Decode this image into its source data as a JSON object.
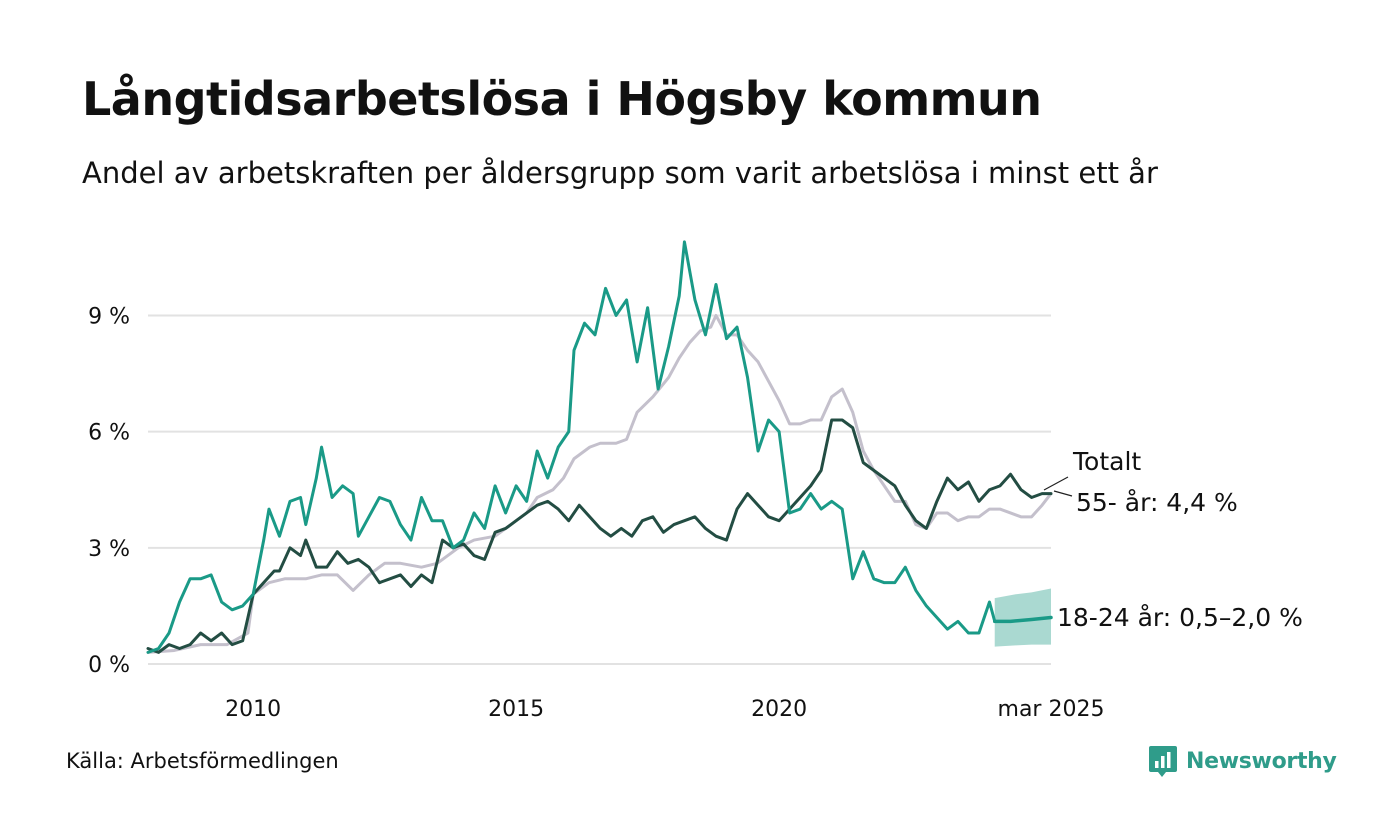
{
  "title": "Långtidsarbetslösa i Högsby kommun",
  "subtitle": "Andel av arbetskraften per åldersgrupp som varit arbetslösa i minst ett år",
  "source": "Källa: Arbetsförmedlingen",
  "logo_text": "Newsworthy",
  "chart_data": {
    "type": "line",
    "y_ticks": [
      {
        "value": 0,
        "label": "0 %"
      },
      {
        "value": 3,
        "label": "3 %"
      },
      {
        "value": 6,
        "label": "6 %"
      },
      {
        "value": 9,
        "label": "9 %"
      }
    ],
    "x_ticks": [
      {
        "value": 2010,
        "label": "2010"
      },
      {
        "value": 2015,
        "label": "2015"
      },
      {
        "value": 2020,
        "label": "2020"
      },
      {
        "value": 2025.17,
        "label": "mar 2025"
      }
    ],
    "xlim": [
      2008.0,
      2025.17
    ],
    "ylim": [
      0,
      11
    ],
    "grid": true,
    "colors": {
      "youth": "#1a9a87",
      "senior": "#234d43",
      "total": "#c4c0cc",
      "band": "#a5d7cf",
      "grid": "#e2e2e2"
    },
    "labels": {
      "total": "Totalt",
      "senior": "55- år: 4,4 %",
      "youth": "18-24 år: 0,5–2,0 %"
    },
    "series": [
      {
        "key": "total",
        "points": [
          [
            2008.0,
            0.3
          ],
          [
            2008.5,
            0.35
          ],
          [
            2009.0,
            0.5
          ],
          [
            2009.5,
            0.5
          ],
          [
            2009.9,
            0.8
          ],
          [
            2010.0,
            1.8
          ],
          [
            2010.3,
            2.1
          ],
          [
            2010.6,
            2.2
          ],
          [
            2011.0,
            2.2
          ],
          [
            2011.3,
            2.3
          ],
          [
            2011.6,
            2.3
          ],
          [
            2011.9,
            1.9
          ],
          [
            2012.2,
            2.3
          ],
          [
            2012.5,
            2.6
          ],
          [
            2012.8,
            2.6
          ],
          [
            2013.2,
            2.5
          ],
          [
            2013.5,
            2.6
          ],
          [
            2013.9,
            3.0
          ],
          [
            2014.2,
            3.2
          ],
          [
            2014.6,
            3.3
          ],
          [
            2014.9,
            3.6
          ],
          [
            2015.2,
            3.9
          ],
          [
            2015.4,
            4.3
          ],
          [
            2015.7,
            4.5
          ],
          [
            2015.9,
            4.8
          ],
          [
            2016.1,
            5.3
          ],
          [
            2016.4,
            5.6
          ],
          [
            2016.6,
            5.7
          ],
          [
            2016.9,
            5.7
          ],
          [
            2017.1,
            5.8
          ],
          [
            2017.3,
            6.5
          ],
          [
            2017.6,
            6.9
          ],
          [
            2017.9,
            7.4
          ],
          [
            2018.1,
            7.9
          ],
          [
            2018.3,
            8.3
          ],
          [
            2018.5,
            8.6
          ],
          [
            2018.7,
            8.7
          ],
          [
            2018.8,
            9.0
          ],
          [
            2019.0,
            8.5
          ],
          [
            2019.2,
            8.5
          ],
          [
            2019.4,
            8.1
          ],
          [
            2019.6,
            7.8
          ],
          [
            2019.8,
            7.3
          ],
          [
            2020.0,
            6.8
          ],
          [
            2020.2,
            6.2
          ],
          [
            2020.4,
            6.2
          ],
          [
            2020.6,
            6.3
          ],
          [
            2020.8,
            6.3
          ],
          [
            2021.0,
            6.9
          ],
          [
            2021.2,
            7.1
          ],
          [
            2021.4,
            6.5
          ],
          [
            2021.6,
            5.5
          ],
          [
            2021.8,
            5.0
          ],
          [
            2022.0,
            4.6
          ],
          [
            2022.2,
            4.2
          ],
          [
            2022.4,
            4.2
          ],
          [
            2022.6,
            3.6
          ],
          [
            2022.8,
            3.5
          ],
          [
            2023.0,
            3.9
          ],
          [
            2023.2,
            3.9
          ],
          [
            2023.4,
            3.7
          ],
          [
            2023.6,
            3.8
          ],
          [
            2023.8,
            3.8
          ],
          [
            2024.0,
            4.0
          ],
          [
            2024.2,
            4.0
          ],
          [
            2024.4,
            3.9
          ],
          [
            2024.6,
            3.8
          ],
          [
            2024.8,
            3.8
          ],
          [
            2025.0,
            4.1
          ],
          [
            2025.17,
            4.4
          ]
        ]
      },
      {
        "key": "senior",
        "points": [
          [
            2008.0,
            0.4
          ],
          [
            2008.2,
            0.3
          ],
          [
            2008.4,
            0.5
          ],
          [
            2008.6,
            0.4
          ],
          [
            2008.8,
            0.5
          ],
          [
            2009.0,
            0.8
          ],
          [
            2009.2,
            0.6
          ],
          [
            2009.4,
            0.8
          ],
          [
            2009.6,
            0.5
          ],
          [
            2009.8,
            0.6
          ],
          [
            2010.0,
            1.8
          ],
          [
            2010.2,
            2.1
          ],
          [
            2010.4,
            2.4
          ],
          [
            2010.5,
            2.4
          ],
          [
            2010.7,
            3.0
          ],
          [
            2010.9,
            2.8
          ],
          [
            2011.0,
            3.2
          ],
          [
            2011.2,
            2.5
          ],
          [
            2011.4,
            2.5
          ],
          [
            2011.6,
            2.9
          ],
          [
            2011.8,
            2.6
          ],
          [
            2012.0,
            2.7
          ],
          [
            2012.2,
            2.5
          ],
          [
            2012.4,
            2.1
          ],
          [
            2012.6,
            2.2
          ],
          [
            2012.8,
            2.3
          ],
          [
            2013.0,
            2.0
          ],
          [
            2013.2,
            2.3
          ],
          [
            2013.4,
            2.1
          ],
          [
            2013.6,
            3.2
          ],
          [
            2013.8,
            3.0
          ],
          [
            2014.0,
            3.1
          ],
          [
            2014.2,
            2.8
          ],
          [
            2014.4,
            2.7
          ],
          [
            2014.6,
            3.4
          ],
          [
            2014.8,
            3.5
          ],
          [
            2015.0,
            3.7
          ],
          [
            2015.2,
            3.9
          ],
          [
            2015.4,
            4.1
          ],
          [
            2015.6,
            4.2
          ],
          [
            2015.8,
            4.0
          ],
          [
            2016.0,
            3.7
          ],
          [
            2016.2,
            4.1
          ],
          [
            2016.4,
            3.8
          ],
          [
            2016.6,
            3.5
          ],
          [
            2016.8,
            3.3
          ],
          [
            2017.0,
            3.5
          ],
          [
            2017.2,
            3.3
          ],
          [
            2017.4,
            3.7
          ],
          [
            2017.6,
            3.8
          ],
          [
            2017.8,
            3.4
          ],
          [
            2018.0,
            3.6
          ],
          [
            2018.2,
            3.7
          ],
          [
            2018.4,
            3.8
          ],
          [
            2018.6,
            3.5
          ],
          [
            2018.8,
            3.3
          ],
          [
            2019.0,
            3.2
          ],
          [
            2019.2,
            4.0
          ],
          [
            2019.4,
            4.4
          ],
          [
            2019.6,
            4.1
          ],
          [
            2019.8,
            3.8
          ],
          [
            2020.0,
            3.7
          ],
          [
            2020.2,
            4.0
          ],
          [
            2020.4,
            4.3
          ],
          [
            2020.6,
            4.6
          ],
          [
            2020.8,
            5.0
          ],
          [
            2021.0,
            6.3
          ],
          [
            2021.2,
            6.3
          ],
          [
            2021.4,
            6.1
          ],
          [
            2021.6,
            5.2
          ],
          [
            2021.8,
            5.0
          ],
          [
            2022.0,
            4.8
          ],
          [
            2022.2,
            4.6
          ],
          [
            2022.4,
            4.1
          ],
          [
            2022.6,
            3.7
          ],
          [
            2022.8,
            3.5
          ],
          [
            2023.0,
            4.2
          ],
          [
            2023.2,
            4.8
          ],
          [
            2023.4,
            4.5
          ],
          [
            2023.6,
            4.7
          ],
          [
            2023.8,
            4.2
          ],
          [
            2024.0,
            4.5
          ],
          [
            2024.2,
            4.6
          ],
          [
            2024.4,
            4.9
          ],
          [
            2024.6,
            4.5
          ],
          [
            2024.8,
            4.3
          ],
          [
            2025.0,
            4.4
          ],
          [
            2025.17,
            4.4
          ]
        ]
      },
      {
        "key": "youth",
        "points": [
          [
            2008.0,
            0.3
          ],
          [
            2008.2,
            0.4
          ],
          [
            2008.4,
            0.8
          ],
          [
            2008.6,
            1.6
          ],
          [
            2008.8,
            2.2
          ],
          [
            2009.0,
            2.2
          ],
          [
            2009.2,
            2.3
          ],
          [
            2009.4,
            1.6
          ],
          [
            2009.6,
            1.4
          ],
          [
            2009.8,
            1.5
          ],
          [
            2010.0,
            1.8
          ],
          [
            2010.2,
            3.2
          ],
          [
            2010.3,
            4.0
          ],
          [
            2010.5,
            3.3
          ],
          [
            2010.7,
            4.2
          ],
          [
            2010.9,
            4.3
          ],
          [
            2011.0,
            3.6
          ],
          [
            2011.2,
            4.8
          ],
          [
            2011.3,
            5.6
          ],
          [
            2011.5,
            4.3
          ],
          [
            2011.7,
            4.6
          ],
          [
            2011.9,
            4.4
          ],
          [
            2012.0,
            3.3
          ],
          [
            2012.2,
            3.8
          ],
          [
            2012.4,
            4.3
          ],
          [
            2012.6,
            4.2
          ],
          [
            2012.8,
            3.6
          ],
          [
            2013.0,
            3.2
          ],
          [
            2013.2,
            4.3
          ],
          [
            2013.4,
            3.7
          ],
          [
            2013.6,
            3.7
          ],
          [
            2013.8,
            3.0
          ],
          [
            2014.0,
            3.2
          ],
          [
            2014.2,
            3.9
          ],
          [
            2014.4,
            3.5
          ],
          [
            2014.6,
            4.6
          ],
          [
            2014.8,
            3.9
          ],
          [
            2015.0,
            4.6
          ],
          [
            2015.2,
            4.2
          ],
          [
            2015.4,
            5.5
          ],
          [
            2015.6,
            4.8
          ],
          [
            2015.8,
            5.6
          ],
          [
            2016.0,
            6.0
          ],
          [
            2016.1,
            8.1
          ],
          [
            2016.3,
            8.8
          ],
          [
            2016.5,
            8.5
          ],
          [
            2016.7,
            9.7
          ],
          [
            2016.9,
            9.0
          ],
          [
            2017.1,
            9.4
          ],
          [
            2017.3,
            7.8
          ],
          [
            2017.5,
            9.2
          ],
          [
            2017.7,
            7.1
          ],
          [
            2017.9,
            8.2
          ],
          [
            2018.1,
            9.5
          ],
          [
            2018.2,
            10.9
          ],
          [
            2018.4,
            9.4
          ],
          [
            2018.6,
            8.5
          ],
          [
            2018.8,
            9.8
          ],
          [
            2019.0,
            8.4
          ],
          [
            2019.2,
            8.7
          ],
          [
            2019.4,
            7.4
          ],
          [
            2019.6,
            5.5
          ],
          [
            2019.8,
            6.3
          ],
          [
            2020.0,
            6.0
          ],
          [
            2020.2,
            3.9
          ],
          [
            2020.4,
            4.0
          ],
          [
            2020.6,
            4.4
          ],
          [
            2020.8,
            4.0
          ],
          [
            2021.0,
            4.2
          ],
          [
            2021.2,
            4.0
          ],
          [
            2021.4,
            2.2
          ],
          [
            2021.6,
            2.9
          ],
          [
            2021.8,
            2.2
          ],
          [
            2022.0,
            2.1
          ],
          [
            2022.2,
            2.1
          ],
          [
            2022.4,
            2.5
          ],
          [
            2022.6,
            1.9
          ],
          [
            2022.8,
            1.5
          ],
          [
            2023.0,
            1.2
          ],
          [
            2023.2,
            0.9
          ],
          [
            2023.4,
            1.1
          ],
          [
            2023.6,
            0.8
          ],
          [
            2023.8,
            0.8
          ],
          [
            2024.0,
            1.6
          ],
          [
            2024.1,
            1.1
          ]
        ]
      },
      {
        "key": "youth_forecast",
        "points": [
          [
            2024.1,
            1.1
          ],
          [
            2024.4,
            1.1
          ],
          [
            2024.8,
            1.15
          ],
          [
            2025.17,
            1.2
          ]
        ]
      }
    ],
    "band": {
      "key": "youth",
      "upper": [
        [
          2024.1,
          1.7
        ],
        [
          2024.5,
          1.8
        ],
        [
          2024.8,
          1.85
        ],
        [
          2025.17,
          1.95
        ]
      ],
      "lower": [
        [
          2024.1,
          0.45
        ],
        [
          2024.5,
          0.48
        ],
        [
          2024.8,
          0.5
        ],
        [
          2025.17,
          0.5
        ]
      ]
    }
  }
}
